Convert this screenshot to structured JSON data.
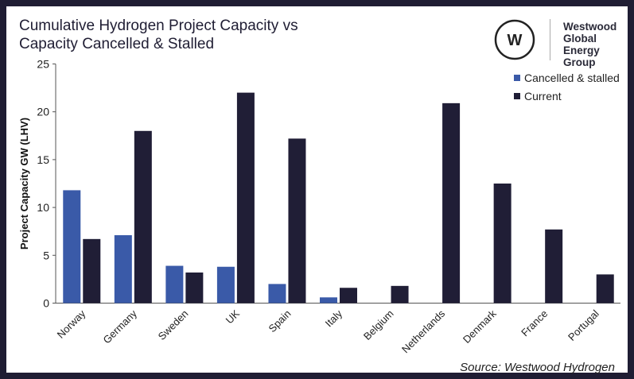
{
  "chart_data": {
    "type": "bar",
    "title": "Cumulative Hydrogen Project Capacity vs Capacity Cancelled & Stalled",
    "title_lines": [
      "Cumulative Hydrogen Project Capacity vs",
      "Capacity Cancelled & Stalled"
    ],
    "xlabel": "",
    "ylabel": "Project Capacity GW (LHV)",
    "ylim": [
      0,
      25
    ],
    "yticks": [
      0,
      5,
      10,
      15,
      20,
      25
    ],
    "grid": false,
    "legend_position": "top-right",
    "categories": [
      "Norway",
      "Germany",
      "Sweden",
      "UK",
      "Spain",
      "Italy",
      "Belgium",
      "Netherlands",
      "Denmark",
      "France",
      "Portugal"
    ],
    "series": [
      {
        "name": "Cancelled & stalled",
        "color": "#3a5aa8",
        "values": [
          11.8,
          7.1,
          3.9,
          3.8,
          2.0,
          0.6,
          0,
          0,
          0,
          0,
          0
        ]
      },
      {
        "name": "Current",
        "color": "#201e36",
        "values": [
          6.7,
          18.0,
          3.2,
          22.0,
          17.2,
          1.6,
          1.8,
          20.9,
          12.5,
          7.7,
          3.0
        ]
      }
    ]
  },
  "logo": {
    "lines": [
      "Westwood",
      "Global Energy",
      "Group"
    ],
    "mark": "W"
  },
  "source": "Source: Westwood Hydrogen"
}
